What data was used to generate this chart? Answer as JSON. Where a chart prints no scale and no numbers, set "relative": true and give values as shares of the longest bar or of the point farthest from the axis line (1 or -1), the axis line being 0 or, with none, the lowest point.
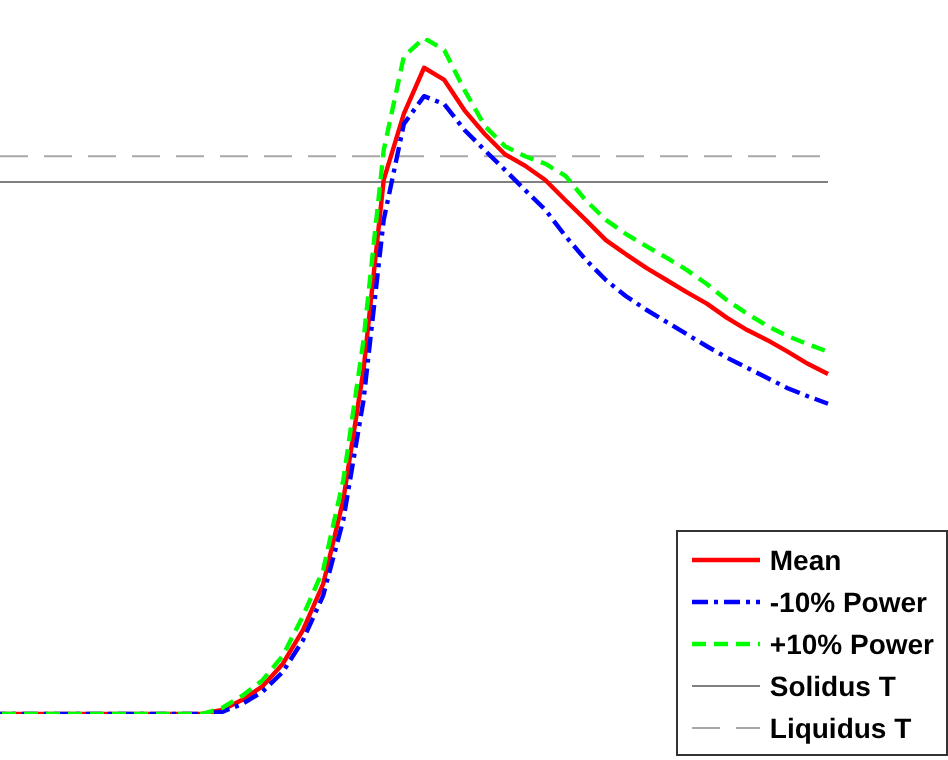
{
  "chart_data": {
    "type": "line",
    "relative": true,
    "legend": "bottom right",
    "marker": "none",
    "categories": [
      null,
      null,
      null,
      null,
      null,
      null,
      null,
      null,
      null,
      null,
      null,
      null,
      null,
      null,
      null,
      null,
      null,
      null,
      null,
      null,
      null,
      null,
      null,
      null,
      null,
      null,
      null,
      null,
      null,
      null,
      null,
      null,
      null,
      null,
      null,
      null,
      null,
      null,
      null,
      null,
      null,
      null
    ],
    "series": [
      {
        "name": "Mean",
        "color": "#ff0000",
        "line_style": "solid",
        "values": [
          0,
          0,
          0,
          0,
          0,
          0,
          0,
          0,
          0,
          0,
          0,
          0.006,
          0.021,
          0.041,
          0.074,
          0.124,
          0.192,
          0.317,
          0.509,
          0.79,
          0.888,
          0.956,
          0.938,
          0.893,
          0.858,
          0.828,
          0.811,
          0.79,
          0.76,
          0.731,
          0.701,
          0.68,
          0.66,
          0.642,
          0.624,
          0.607,
          0.586,
          0.568,
          0.553,
          0.536,
          0.518,
          0.503
        ]
      },
      {
        "name": "-10% Power",
        "color": "#0000ff",
        "line_style": "dashdot",
        "values": [
          0,
          0,
          0,
          0,
          0,
          0,
          0,
          0,
          0,
          0,
          0,
          0.003,
          0.015,
          0.033,
          0.062,
          0.109,
          0.175,
          0.287,
          0.464,
          0.731,
          0.873,
          0.914,
          0.902,
          0.864,
          0.834,
          0.805,
          0.775,
          0.746,
          0.707,
          0.672,
          0.642,
          0.618,
          0.598,
          0.58,
          0.562,
          0.544,
          0.527,
          0.512,
          0.497,
          0.482,
          0.47,
          0.459
        ]
      },
      {
        "name": "+10% Power",
        "color": "#00ff00",
        "line_style": "dashed",
        "values": [
          0,
          0,
          0,
          0,
          0,
          0,
          0,
          0,
          0,
          0,
          0,
          0.009,
          0.027,
          0.05,
          0.086,
          0.145,
          0.213,
          0.346,
          0.553,
          0.834,
          0.973,
          1,
          0.982,
          0.923,
          0.87,
          0.84,
          0.825,
          0.814,
          0.796,
          0.76,
          0.731,
          0.71,
          0.692,
          0.675,
          0.657,
          0.636,
          0.612,
          0.592,
          0.574,
          0.559,
          0.547,
          0.536
        ]
      }
    ],
    "ref_lines": [
      {
        "axis": "y",
        "value": 0.787,
        "label": "Solidus T",
        "color": "#808080",
        "line_style": "solid"
      },
      {
        "axis": "y",
        "value": 0.825,
        "label": "Liquidus T",
        "color": "#a8a8a8",
        "line_style": "dashed"
      }
    ]
  }
}
